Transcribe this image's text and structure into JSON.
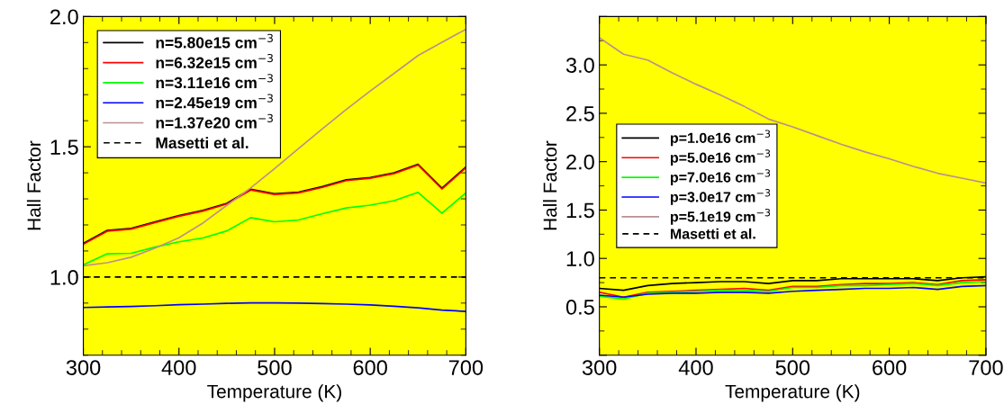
{
  "chart_data": [
    {
      "type": "line",
      "xlabel": "Temperature (K)",
      "ylabel": "Hall Factor",
      "x": [
        300,
        325,
        350,
        375,
        400,
        425,
        450,
        475,
        500,
        525,
        550,
        575,
        600,
        625,
        650,
        675,
        700
      ],
      "xlim": [
        300,
        700
      ],
      "ylim": [
        0.7,
        2.0
      ],
      "xticks": [
        300,
        400,
        500,
        600,
        700
      ],
      "yticks": [
        {
          "value": 1,
          "label": "1.0"
        },
        1.5,
        {
          "value": 2,
          "label": "2.0"
        }
      ],
      "legend": "top left",
      "series": [
        {
          "name": "n=5.80e15 cm$^{−3}$",
          "color": "#000000",
          "values": [
            1.129,
            1.179,
            1.187,
            1.212,
            1.236,
            1.256,
            1.283,
            1.337,
            1.32,
            1.326,
            1.347,
            1.373,
            1.382,
            1.4,
            1.433,
            1.341,
            1.422
          ]
        },
        {
          "name": "n=6.32e15 cm$^{−3}$",
          "color": "#ff0000",
          "values": [
            1.126,
            1.176,
            1.184,
            1.209,
            1.233,
            1.253,
            1.28,
            1.334,
            1.317,
            1.323,
            1.344,
            1.37,
            1.379,
            1.397,
            1.43,
            1.338,
            1.419
          ]
        },
        {
          "name": "n=3.11e16 cm$^{−3}$",
          "color": "#00ff00",
          "values": [
            1.047,
            1.089,
            1.091,
            1.115,
            1.135,
            1.15,
            1.177,
            1.228,
            1.212,
            1.219,
            1.243,
            1.265,
            1.276,
            1.293,
            1.325,
            1.245,
            1.323
          ]
        },
        {
          "name": "n=2.45e19 cm$^{−3}$",
          "color": "#0000ff",
          "values": [
            0.883,
            0.885,
            0.887,
            0.89,
            0.894,
            0.896,
            0.899,
            0.901,
            0.901,
            0.9,
            0.898,
            0.896,
            0.893,
            0.888,
            0.882,
            0.873,
            0.868
          ]
        },
        {
          "name": "n=1.37e20 cm$^{−3}$",
          "color": "#bc8f8f",
          "values": [
            1.043,
            1.055,
            1.076,
            1.111,
            1.151,
            1.207,
            1.275,
            1.342,
            1.416,
            1.493,
            1.569,
            1.643,
            1.714,
            1.782,
            1.85,
            1.901,
            1.951
          ]
        },
        {
          "name": "Masetti et al.",
          "color": "#000000",
          "line_style": "dashed",
          "values": [
            1.0,
            1.0,
            1.0,
            1.0,
            1.0,
            1.0,
            1.0,
            1.0,
            1.0,
            1.0,
            1.0,
            1.0,
            1.0,
            1.0,
            1.0,
            1.0,
            1.0
          ]
        }
      ]
    },
    {
      "type": "line",
      "xlabel": "Temperature (K)",
      "ylabel": "Hall Factor",
      "x": [
        300,
        325,
        350,
        375,
        400,
        425,
        450,
        475,
        500,
        525,
        550,
        575,
        600,
        625,
        650,
        675,
        700
      ],
      "xlim": [
        300,
        700
      ],
      "ylim": [
        0,
        3.5
      ],
      "xticks": [
        300,
        400,
        500,
        600,
        700
      ],
      "yticks": [
        {
          "value": 0,
          "label": null
        },
        0.5,
        {
          "value": 1,
          "label": "1.0"
        },
        1.5,
        {
          "value": 2,
          "label": "2.0"
        },
        2.5,
        {
          "value": 3,
          "label": "3.0"
        },
        {
          "value": 3.5,
          "label": null
        }
      ],
      "legend": "left",
      "series": [
        {
          "name": "p=1.0e16 cm$^{−3}$",
          "color": "#000000",
          "values": [
            0.69,
            0.67,
            0.72,
            0.74,
            0.75,
            0.76,
            0.76,
            0.74,
            0.77,
            0.77,
            0.79,
            0.79,
            0.79,
            0.79,
            0.77,
            0.8,
            0.81
          ]
        },
        {
          "name": "p=5.0e16 cm$^{−3}$",
          "color": "#ff0000",
          "values": [
            0.65,
            0.6,
            0.65,
            0.66,
            0.67,
            0.68,
            0.69,
            0.67,
            0.71,
            0.71,
            0.73,
            0.74,
            0.74,
            0.75,
            0.73,
            0.77,
            0.78
          ]
        },
        {
          "name": "p=7.0e16 cm$^{−3}$",
          "color": "#00ff00",
          "values": [
            0.61,
            0.58,
            0.64,
            0.65,
            0.66,
            0.67,
            0.67,
            0.66,
            0.7,
            0.7,
            0.72,
            0.72,
            0.73,
            0.74,
            0.72,
            0.75,
            0.76
          ]
        },
        {
          "name": "p=3.0e17 cm$^{−3}$",
          "color": "#0000ff",
          "values": [
            0.62,
            0.6,
            0.63,
            0.64,
            0.64,
            0.65,
            0.65,
            0.64,
            0.66,
            0.67,
            0.68,
            0.69,
            0.69,
            0.7,
            0.68,
            0.71,
            0.72
          ]
        },
        {
          "name": "p=5.1e19 cm$^{−3}$",
          "color": "#bc8f8f",
          "values": [
            3.28,
            3.11,
            3.05,
            2.92,
            2.8,
            2.69,
            2.57,
            2.44,
            2.36,
            2.27,
            2.18,
            2.1,
            2.03,
            1.95,
            1.88,
            1.83,
            1.78
          ]
        },
        {
          "name": "Masetti et al.",
          "color": "#000000",
          "line_style": "dashed",
          "values": [
            0.8,
            0.8,
            0.8,
            0.8,
            0.8,
            0.8,
            0.8,
            0.8,
            0.8,
            0.8,
            0.8,
            0.8,
            0.8,
            0.8,
            0.8,
            0.8,
            0.8
          ]
        }
      ]
    }
  ]
}
